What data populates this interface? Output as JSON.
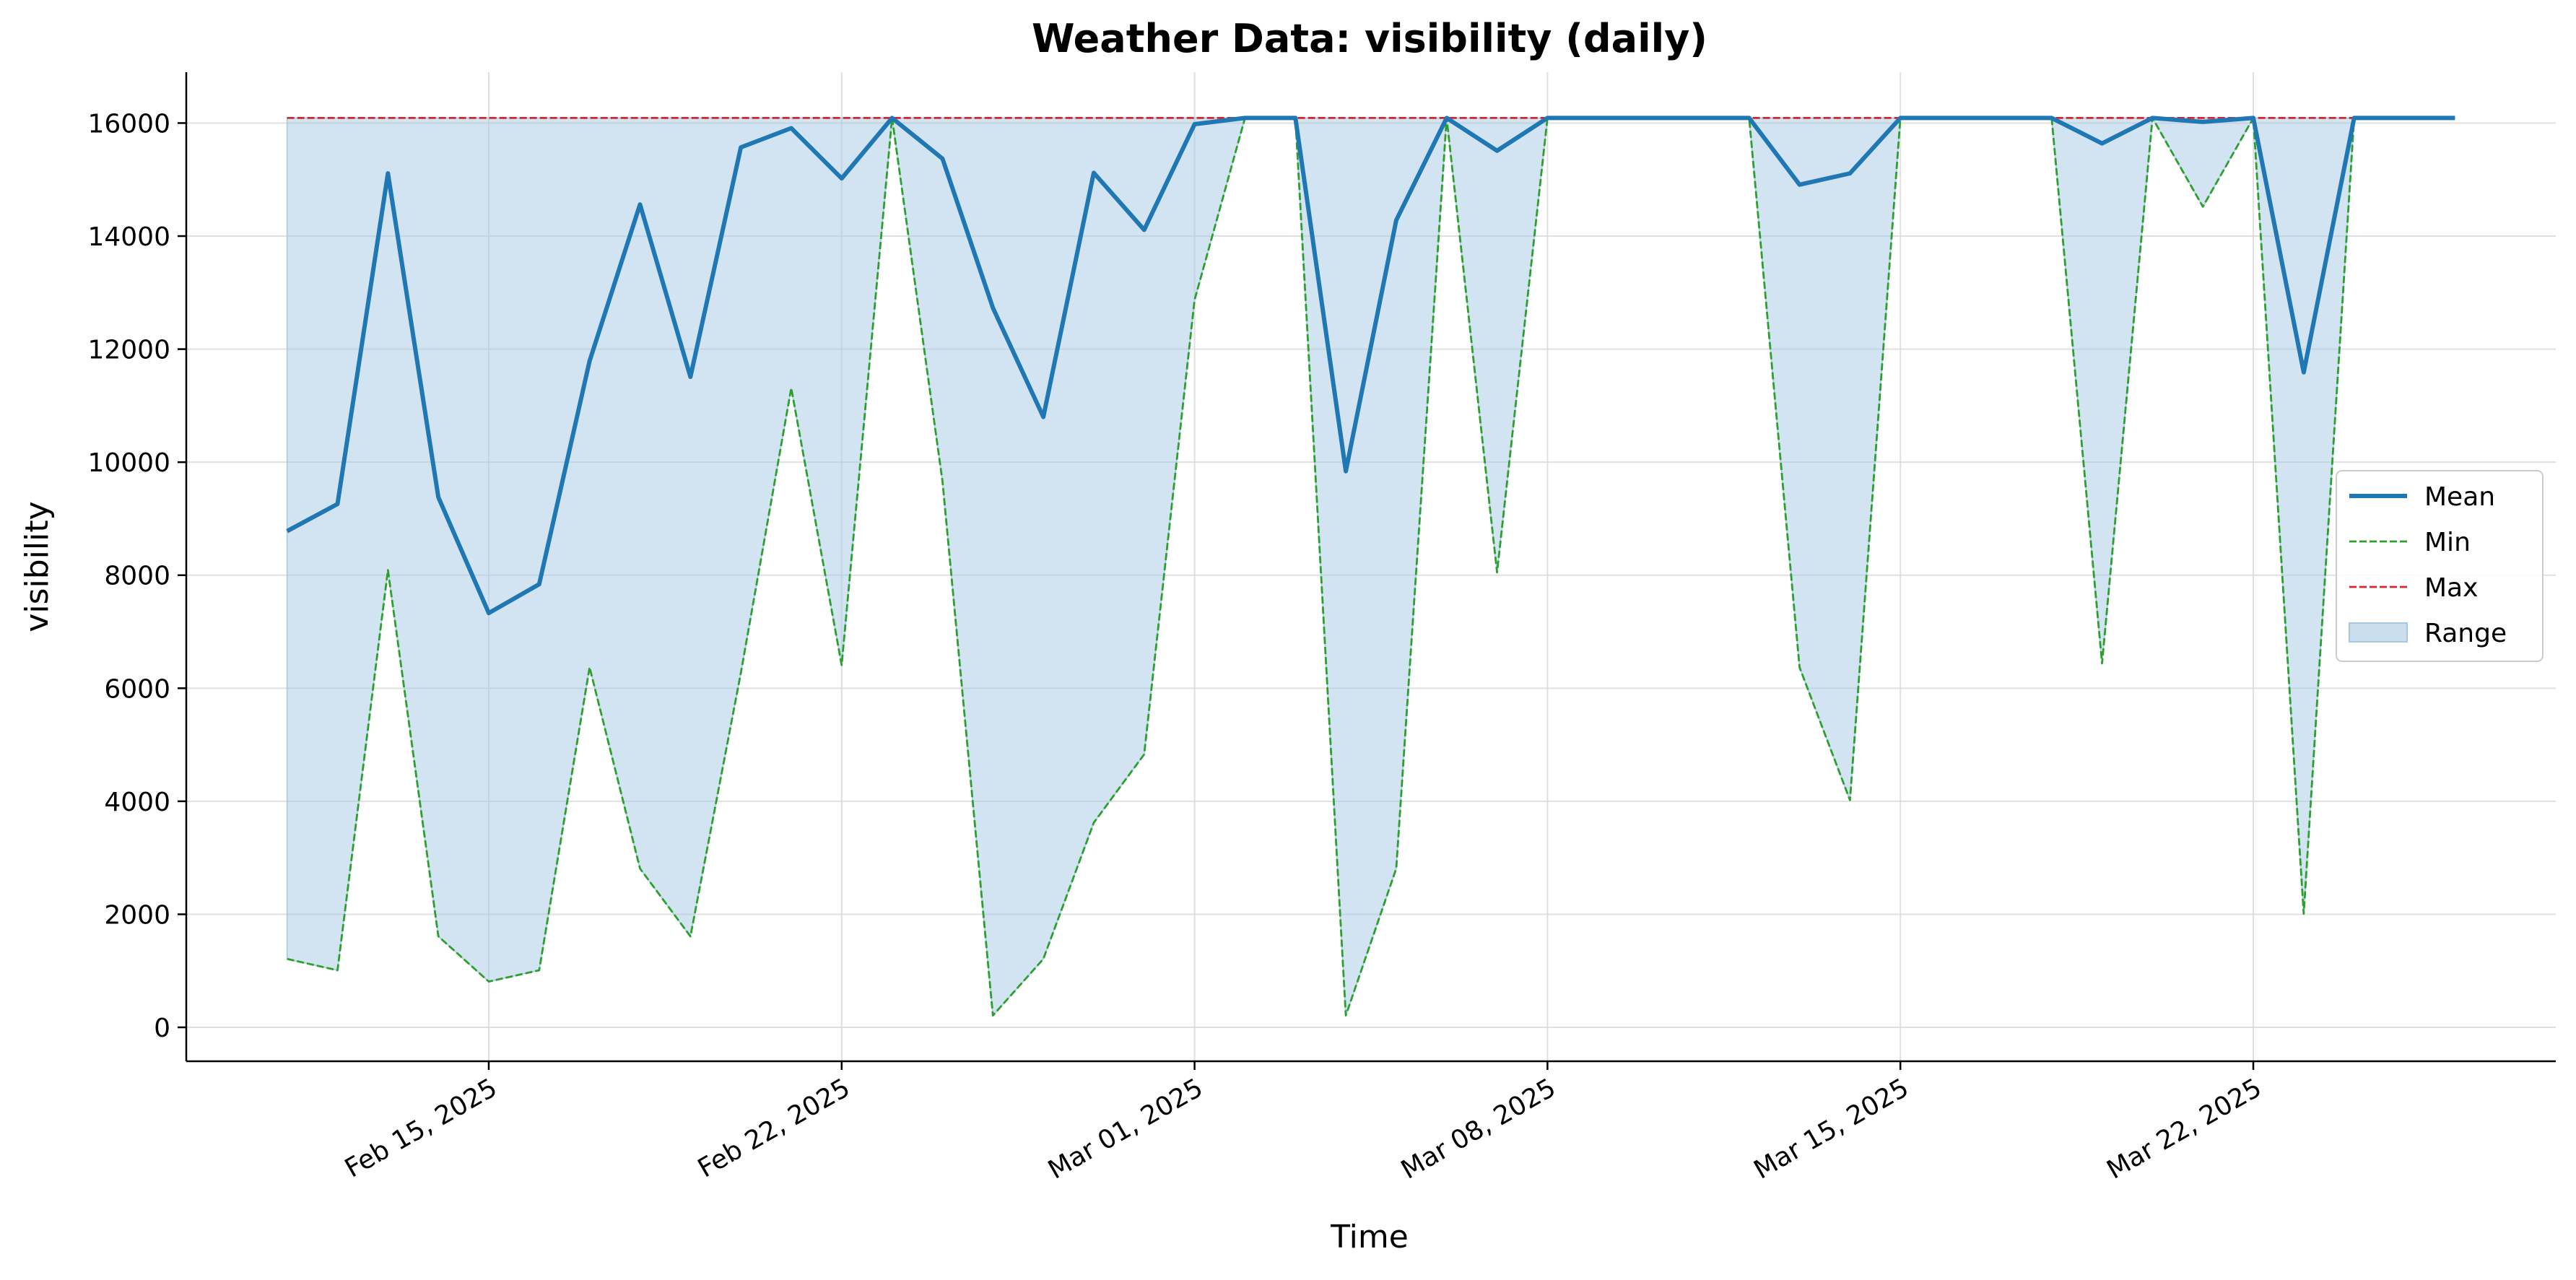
{
  "chart_data": {
    "type": "line",
    "title": "Weather Data: visibility (daily)",
    "xlabel": "Time",
    "ylabel": "visibility",
    "x": [
      "2025-02-11",
      "2025-02-12",
      "2025-02-13",
      "2025-02-14",
      "2025-02-15",
      "2025-02-16",
      "2025-02-17",
      "2025-02-18",
      "2025-02-19",
      "2025-02-20",
      "2025-02-21",
      "2025-02-22",
      "2025-02-23",
      "2025-02-24",
      "2025-02-25",
      "2025-02-26",
      "2025-02-27",
      "2025-02-28",
      "2025-03-01",
      "2025-03-02",
      "2025-03-03",
      "2025-03-04",
      "2025-03-05",
      "2025-03-06",
      "2025-03-07",
      "2025-03-08",
      "2025-03-09",
      "2025-03-10",
      "2025-03-11",
      "2025-03-12",
      "2025-03-13",
      "2025-03-14",
      "2025-03-15",
      "2025-03-16",
      "2025-03-17",
      "2025-03-18",
      "2025-03-19",
      "2025-03-20",
      "2025-03-21",
      "2025-03-22",
      "2025-03-23",
      "2025-03-24",
      "2025-03-25",
      "2025-03-26"
    ],
    "series": [
      {
        "name": "Mean",
        "color": "#1f77b4",
        "style": "solid",
        "values": [
          8780,
          9260,
          15110,
          9380,
          7330,
          7840,
          11790,
          14560,
          11510,
          15570,
          15910,
          15020,
          16090,
          15370,
          12730,
          10800,
          15120,
          14110,
          15980,
          16090,
          16090,
          9840,
          14280,
          16090,
          15510,
          16090,
          16090,
          16090,
          16090,
          16090,
          14910,
          15110,
          16090,
          16090,
          16090,
          16090,
          15640,
          16090,
          16020,
          16090,
          11590,
          16090,
          16090,
          16090
        ]
      },
      {
        "name": "Min",
        "color": "#2ca02c",
        "style": "dashed",
        "values": [
          1210,
          1010,
          8090,
          1610,
          810,
          1010,
          6370,
          2810,
          1610,
          6270,
          11310,
          6410,
          16090,
          9660,
          210,
          1210,
          3620,
          4830,
          12870,
          16090,
          16090,
          210,
          2810,
          16090,
          8050,
          16090,
          16090,
          16090,
          16090,
          16090,
          6370,
          4020,
          16090,
          16090,
          16090,
          16090,
          6440,
          16090,
          14520,
          16090,
          2010,
          16090,
          16090,
          16090
        ]
      },
      {
        "name": "Max",
        "color": "#d62728",
        "style": "dashed",
        "values": [
          16090,
          16090,
          16090,
          16090,
          16090,
          16090,
          16090,
          16090,
          16090,
          16090,
          16090,
          16090,
          16090,
          16090,
          16090,
          16090,
          16090,
          16090,
          16090,
          16090,
          16090,
          16090,
          16090,
          16090,
          16090,
          16090,
          16090,
          16090,
          16090,
          16090,
          16090,
          16090,
          16090,
          16090,
          16090,
          16090,
          16090,
          16090,
          16090,
          16090,
          16090,
          16090,
          16090,
          16090
        ]
      }
    ],
    "range_band": {
      "name": "Range",
      "lower": "Min",
      "upper": "Max",
      "color": "#a6c8e3"
    },
    "x_ticks": [
      {
        "date": "2025-02-15",
        "label": "Feb 15, 2025"
      },
      {
        "date": "2025-02-22",
        "label": "Feb 22, 2025"
      },
      {
        "date": "2025-03-01",
        "label": "Mar 01, 2025"
      },
      {
        "date": "2025-03-08",
        "label": "Mar 08, 2025"
      },
      {
        "date": "2025-03-15",
        "label": "Mar 15, 2025"
      },
      {
        "date": "2025-03-22",
        "label": "Mar 22, 2025"
      }
    ],
    "y_ticks": [
      0,
      2000,
      4000,
      6000,
      8000,
      10000,
      12000,
      14000,
      16000
    ],
    "xlim": [
      "2025-02-09",
      "2025-03-28"
    ],
    "ylim": [
      -600,
      16900
    ],
    "grid": true,
    "legend": {
      "placement": "right",
      "entries": [
        {
          "label": "Mean",
          "color": "#1f77b4",
          "kind": "line"
        },
        {
          "label": "Min",
          "color": "#2ca02c",
          "kind": "dashed"
        },
        {
          "label": "Max",
          "color": "#d62728",
          "kind": "dashed"
        },
        {
          "label": "Range",
          "color": "#a6c8e3",
          "kind": "patch"
        }
      ]
    }
  }
}
